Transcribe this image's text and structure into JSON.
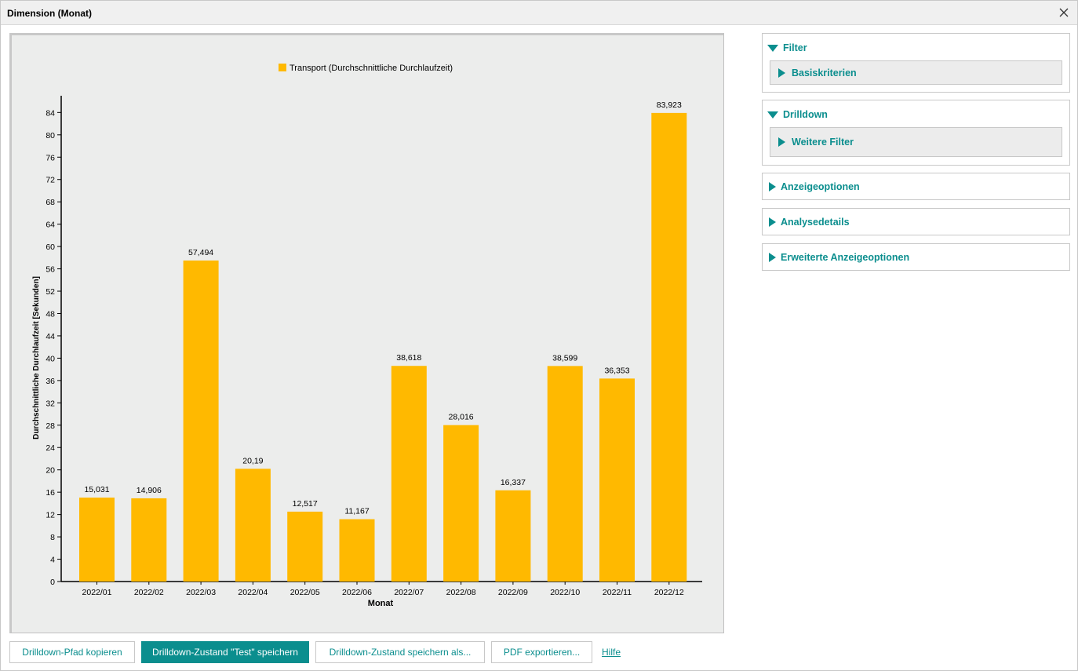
{
  "window": {
    "title": "Dimension (Monat)"
  },
  "colors": {
    "accent": "#0b8e8e",
    "bar": "#ffb900",
    "plot_bg": "#ecedec"
  },
  "chart_data": {
    "type": "bar",
    "categories": [
      "2022/01",
      "2022/02",
      "2022/03",
      "2022/04",
      "2022/05",
      "2022/06",
      "2022/07",
      "2022/08",
      "2022/09",
      "2022/10",
      "2022/11",
      "2022/12"
    ],
    "series": [
      {
        "name": "Transport (Durchschnittliche Durchlaufzeit)",
        "values": [
          15.031,
          14.906,
          57.494,
          20.19,
          12.517,
          11.167,
          38.618,
          28.016,
          16.337,
          38.599,
          36.353,
          83.923
        ],
        "labels": [
          "15,031",
          "14,906",
          "57,494",
          "20,19",
          "12,517",
          "11,167",
          "38,618",
          "28,016",
          "16,337",
          "38,599",
          "36,353",
          "83,923"
        ]
      }
    ],
    "xlabel": "Monat",
    "ylabel": "Durchschnittliche Durchlaufzeit [Sekunden]",
    "ylim": [
      0,
      87
    ],
    "yticks": [
      0,
      4,
      8,
      12,
      16,
      20,
      24,
      28,
      32,
      36,
      40,
      44,
      48,
      52,
      56,
      60,
      64,
      68,
      72,
      76,
      80,
      84
    ],
    "legend_position": "top-center",
    "grid": false
  },
  "panels": {
    "filter": {
      "label": "Filter",
      "sub": "Basiskriterien"
    },
    "drilldown": {
      "label": "Drilldown",
      "sub": "Weitere Filter"
    },
    "anzeige": {
      "label": "Anzeigeoptionen"
    },
    "analyse": {
      "label": "Analysedetails"
    },
    "erweitert": {
      "label": "Erweiterte Anzeigeoptionen"
    }
  },
  "buttons": {
    "copy_path": "Drilldown-Pfad kopieren",
    "save_state": "Drilldown-Zustand \"Test\" speichern",
    "save_as": "Drilldown-Zustand speichern als...",
    "pdf": "PDF exportieren...",
    "help": "Hilfe"
  },
  "icons": {
    "close": "close-icon",
    "expanded": "triangle-down-icon",
    "collapsed": "triangle-right-icon"
  }
}
